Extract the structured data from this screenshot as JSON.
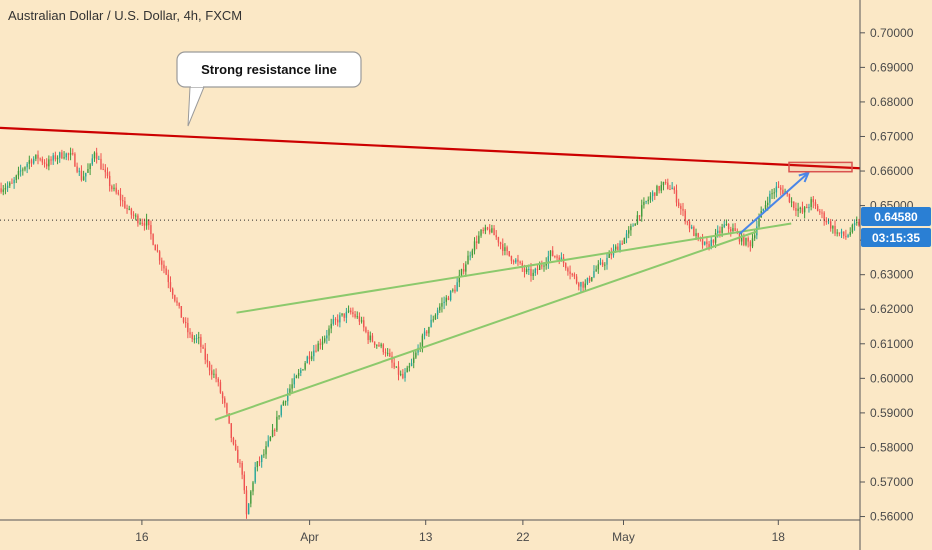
{
  "chart": {
    "title": "Australian Dollar / U.S. Dollar, 4h, FXCM",
    "callout": "Strong resistance line",
    "current_price_label": "0.64580",
    "countdown_label": "03:15:35",
    "colors": {
      "background": "#fbe8c6",
      "up_candle": "#26a69a",
      "up_candle_alt": "#3f9a3a",
      "down_candle": "#ef5350",
      "resistance_line": "#cc0000",
      "support_line": "#8cc96c",
      "projection_arrow": "#4a86e8",
      "target_box": "#d9534f",
      "price_tag": "#2a7fd4"
    },
    "icons": [
      "arrow-icon"
    ]
  },
  "chart_data": {
    "type": "candlestick",
    "title": "Australian Dollar / U.S. Dollar, 4h, FXCM",
    "price_axis": {
      "ticks": [
        "0.70000",
        "0.69000",
        "0.68000",
        "0.67000",
        "0.66000",
        "0.65000",
        "0.64000",
        "0.63000",
        "0.62000",
        "0.61000",
        "0.60000",
        "0.59000",
        "0.58000",
        "0.57000",
        "0.56000"
      ],
      "range": [
        0.559,
        0.7095
      ],
      "side": "right"
    },
    "time_axis": {
      "ticks": [
        "16",
        "Apr",
        "13",
        "22",
        "May",
        "18"
      ]
    },
    "current_price": 0.6458,
    "series_outline": [
      [
        0,
        0.655
      ],
      [
        6,
        0.656
      ],
      [
        10,
        0.66
      ],
      [
        14,
        0.663
      ],
      [
        18,
        0.664
      ],
      [
        22,
        0.662
      ],
      [
        26,
        0.664
      ],
      [
        30,
        0.665
      ],
      [
        34,
        0.664
      ],
      [
        38,
        0.658
      ],
      [
        42,
        0.661
      ],
      [
        44,
        0.666
      ],
      [
        48,
        0.66
      ],
      [
        52,
        0.655
      ],
      [
        56,
        0.652
      ],
      [
        60,
        0.648
      ],
      [
        64,
        0.646
      ],
      [
        68,
        0.645
      ],
      [
        72,
        0.638
      ],
      [
        76,
        0.632
      ],
      [
        80,
        0.625
      ],
      [
        84,
        0.618
      ],
      [
        88,
        0.612
      ],
      [
        92,
        0.611
      ],
      [
        96,
        0.604
      ],
      [
        100,
        0.6
      ],
      [
        104,
        0.592
      ],
      [
        108,
        0.58
      ],
      [
        112,
        0.573
      ],
      [
        114,
        0.56
      ],
      [
        118,
        0.574
      ],
      [
        122,
        0.578
      ],
      [
        126,
        0.584
      ],
      [
        130,
        0.592
      ],
      [
        134,
        0.597
      ],
      [
        138,
        0.601
      ],
      [
        142,
        0.606
      ],
      [
        146,
        0.609
      ],
      [
        150,
        0.612
      ],
      [
        154,
        0.616
      ],
      [
        158,
        0.618
      ],
      [
        162,
        0.619
      ],
      [
        166,
        0.617
      ],
      [
        170,
        0.612
      ],
      [
        174,
        0.61
      ],
      [
        178,
        0.608
      ],
      [
        182,
        0.603
      ],
      [
        186,
        0.6
      ],
      [
        190,
        0.604
      ],
      [
        194,
        0.61
      ],
      [
        198,
        0.615
      ],
      [
        202,
        0.62
      ],
      [
        206,
        0.623
      ],
      [
        210,
        0.626
      ],
      [
        214,
        0.632
      ],
      [
        218,
        0.638
      ],
      [
        222,
        0.642
      ],
      [
        226,
        0.643
      ],
      [
        230,
        0.64
      ],
      [
        234,
        0.636
      ],
      [
        238,
        0.634
      ],
      [
        242,
        0.631
      ],
      [
        246,
        0.63
      ],
      [
        250,
        0.633
      ],
      [
        254,
        0.636
      ],
      [
        258,
        0.635
      ],
      [
        262,
        0.632
      ],
      [
        266,
        0.628
      ],
      [
        270,
        0.627
      ],
      [
        274,
        0.631
      ],
      [
        278,
        0.633
      ],
      [
        282,
        0.636
      ],
      [
        286,
        0.639
      ],
      [
        290,
        0.642
      ],
      [
        294,
        0.647
      ],
      [
        298,
        0.651
      ],
      [
        302,
        0.654
      ],
      [
        306,
        0.656
      ],
      [
        310,
        0.655
      ],
      [
        314,
        0.649
      ],
      [
        318,
        0.644
      ],
      [
        322,
        0.64
      ],
      [
        326,
        0.638
      ],
      [
        330,
        0.641
      ],
      [
        334,
        0.644
      ],
      [
        338,
        0.643
      ],
      [
        342,
        0.64
      ],
      [
        346,
        0.639
      ],
      [
        350,
        0.646
      ],
      [
        354,
        0.652
      ],
      [
        358,
        0.655
      ],
      [
        362,
        0.654
      ],
      [
        366,
        0.65
      ],
      [
        370,
        0.648
      ],
      [
        374,
        0.651
      ],
      [
        378,
        0.648
      ],
      [
        382,
        0.645
      ],
      [
        386,
        0.642
      ],
      [
        390,
        0.641
      ],
      [
        394,
        0.644
      ],
      [
        398,
        0.6458
      ]
    ],
    "annotations": [
      {
        "type": "line",
        "name": "resistance",
        "from": [
          0.0,
          0.6725
        ],
        "to": [
          1.0,
          0.6608
        ]
      },
      {
        "type": "line",
        "name": "support-upper",
        "from": [
          0.275,
          0.619
        ],
        "to": [
          0.92,
          0.6448
        ]
      },
      {
        "type": "line",
        "name": "support-lower",
        "from": [
          0.25,
          0.588
        ],
        "to": [
          0.88,
          0.6425
        ]
      },
      {
        "type": "arrow",
        "name": "projection",
        "from": [
          0.86,
          0.6418
        ],
        "to": [
          0.94,
          0.6595
        ]
      },
      {
        "type": "box",
        "name": "target-zone",
        "price_range": [
          0.6598,
          0.6625
        ]
      }
    ]
  }
}
